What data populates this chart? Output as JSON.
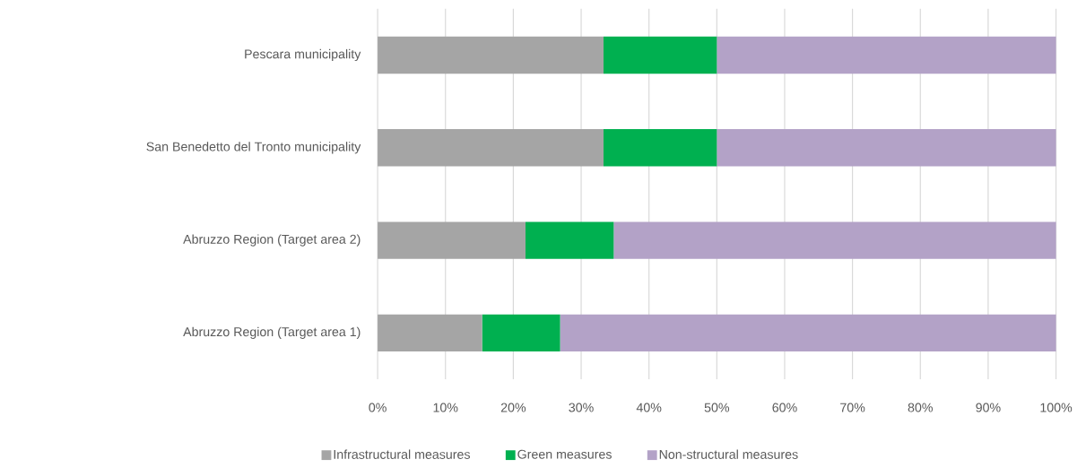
{
  "chart_data": {
    "type": "bar",
    "orientation": "horizontal",
    "stacked": true,
    "categories": [
      "Pescara municipality",
      "San Benedetto del Tronto municipality",
      "Abruzzo Region (Target area 2)",
      "Abruzzo Region (Target area 1)"
    ],
    "series": [
      {
        "name": "Infrastructural measures",
        "color": "#a5a5a5",
        "values": [
          33.3,
          33.3,
          21.8,
          15.4
        ]
      },
      {
        "name": "Green measures",
        "color": "#00b050",
        "values": [
          16.7,
          16.7,
          13.0,
          11.5
        ]
      },
      {
        "name": "Non-structural measures",
        "color": "#b3a2c7",
        "values": [
          50.0,
          50.0,
          65.2,
          73.1
        ]
      }
    ],
    "xlim": [
      0,
      100
    ],
    "xticks": [
      {
        "value": 0,
        "label": "0%"
      },
      {
        "value": 10,
        "label": "10%"
      },
      {
        "value": 20,
        "label": "20%"
      },
      {
        "value": 30,
        "label": "30%"
      },
      {
        "value": 40,
        "label": "40%"
      },
      {
        "value": 50,
        "label": "50%"
      },
      {
        "value": 60,
        "label": "60%"
      },
      {
        "value": 70,
        "label": "70%"
      },
      {
        "value": 80,
        "label": "80%"
      },
      {
        "value": 90,
        "label": "90%"
      },
      {
        "value": 100,
        "label": "100%"
      }
    ],
    "grid": "x",
    "legend": "bottom"
  }
}
